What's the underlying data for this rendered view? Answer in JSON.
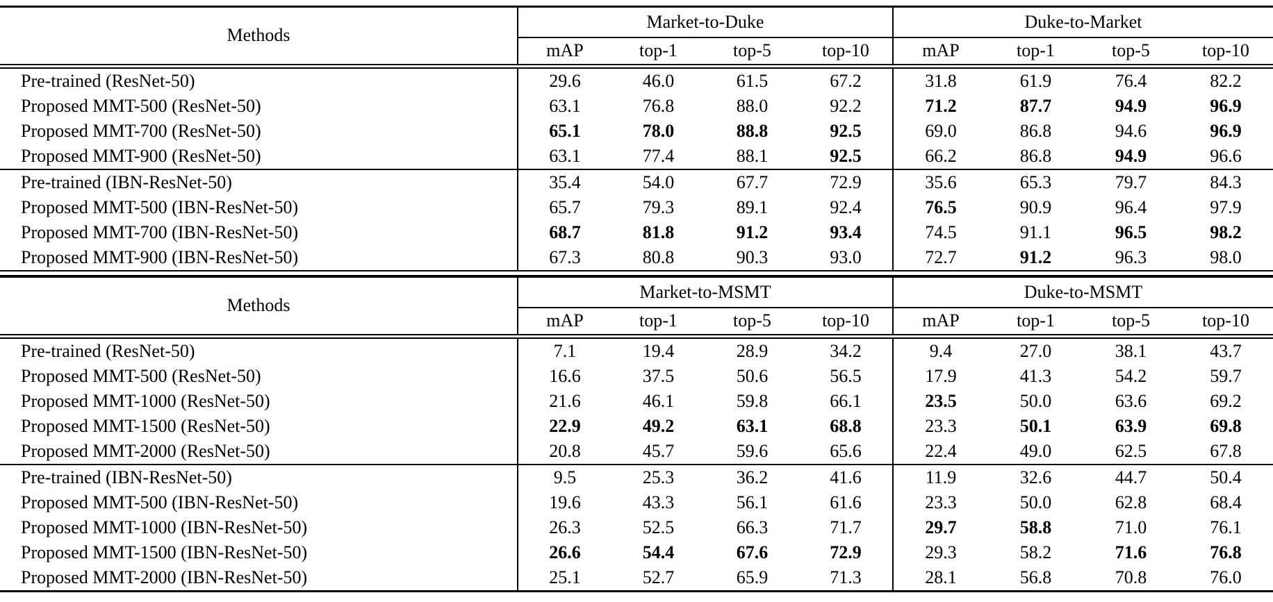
{
  "colors": {
    "background": "#ffffff",
    "text": "#000000",
    "rule": "#000000"
  },
  "tables": [
    {
      "name": "duke-market-results",
      "methods_header": "Methods",
      "groups": [
        {
          "label": "Market-to-Duke",
          "columns": [
            "mAP",
            "top-1",
            "top-5",
            "top-10"
          ]
        },
        {
          "label": "Duke-to-Market",
          "columns": [
            "mAP",
            "top-1",
            "top-5",
            "top-10"
          ]
        }
      ],
      "blocks": [
        {
          "rows": [
            {
              "method": "Pre-trained (ResNet-50)",
              "values": [
                "29.6",
                "46.0",
                "61.5",
                "67.2",
                "31.8",
                "61.9",
                "76.4",
                "82.2"
              ],
              "bold": [
                0,
                0,
                0,
                0,
                0,
                0,
                0,
                0
              ]
            },
            {
              "method": "Proposed MMT-500 (ResNet-50)",
              "values": [
                "63.1",
                "76.8",
                "88.0",
                "92.2",
                "71.2",
                "87.7",
                "94.9",
                "96.9"
              ],
              "bold": [
                0,
                0,
                0,
                0,
                1,
                1,
                1,
                1
              ]
            },
            {
              "method": "Proposed MMT-700 (ResNet-50)",
              "values": [
                "65.1",
                "78.0",
                "88.8",
                "92.5",
                "69.0",
                "86.8",
                "94.6",
                "96.9"
              ],
              "bold": [
                1,
                1,
                1,
                1,
                0,
                0,
                0,
                1
              ]
            },
            {
              "method": "Proposed MMT-900 (ResNet-50)",
              "values": [
                "63.1",
                "77.4",
                "88.1",
                "92.5",
                "66.2",
                "86.8",
                "94.9",
                "96.6"
              ],
              "bold": [
                0,
                0,
                0,
                1,
                0,
                0,
                1,
                0
              ]
            }
          ]
        },
        {
          "rows": [
            {
              "method": "Pre-trained (IBN-ResNet-50)",
              "values": [
                "35.4",
                "54.0",
                "67.7",
                "72.9",
                "35.6",
                "65.3",
                "79.7",
                "84.3"
              ],
              "bold": [
                0,
                0,
                0,
                0,
                0,
                0,
                0,
                0
              ]
            },
            {
              "method": "Proposed MMT-500 (IBN-ResNet-50)",
              "values": [
                "65.7",
                "79.3",
                "89.1",
                "92.4",
                "76.5",
                "90.9",
                "96.4",
                "97.9"
              ],
              "bold": [
                0,
                0,
                0,
                0,
                1,
                0,
                0,
                0
              ]
            },
            {
              "method": "Proposed MMT-700 (IBN-ResNet-50)",
              "values": [
                "68.7",
                "81.8",
                "91.2",
                "93.4",
                "74.5",
                "91.1",
                "96.5",
                "98.2"
              ],
              "bold": [
                1,
                1,
                1,
                1,
                0,
                0,
                1,
                1
              ]
            },
            {
              "method": "Proposed MMT-900 (IBN-ResNet-50)",
              "values": [
                "67.3",
                "80.8",
                "90.3",
                "93.0",
                "72.7",
                "91.2",
                "96.3",
                "98.0"
              ],
              "bold": [
                0,
                0,
                0,
                0,
                0,
                1,
                0,
                0
              ]
            }
          ]
        }
      ]
    },
    {
      "name": "msmt-results",
      "methods_header": "Methods",
      "groups": [
        {
          "label": "Market-to-MSMT",
          "columns": [
            "mAP",
            "top-1",
            "top-5",
            "top-10"
          ]
        },
        {
          "label": "Duke-to-MSMT",
          "columns": [
            "mAP",
            "top-1",
            "top-5",
            "top-10"
          ]
        }
      ],
      "blocks": [
        {
          "rows": [
            {
              "method": "Pre-trained (ResNet-50)",
              "values": [
                "7.1",
                "19.4",
                "28.9",
                "34.2",
                "9.4",
                "27.0",
                "38.1",
                "43.7"
              ],
              "bold": [
                0,
                0,
                0,
                0,
                0,
                0,
                0,
                0
              ]
            },
            {
              "method": "Proposed MMT-500 (ResNet-50)",
              "values": [
                "16.6",
                "37.5",
                "50.6",
                "56.5",
                "17.9",
                "41.3",
                "54.2",
                "59.7"
              ],
              "bold": [
                0,
                0,
                0,
                0,
                0,
                0,
                0,
                0
              ]
            },
            {
              "method": "Proposed MMT-1000 (ResNet-50)",
              "values": [
                "21.6",
                "46.1",
                "59.8",
                "66.1",
                "23.5",
                "50.0",
                "63.6",
                "69.2"
              ],
              "bold": [
                0,
                0,
                0,
                0,
                1,
                0,
                0,
                0
              ]
            },
            {
              "method": "Proposed MMT-1500 (ResNet-50)",
              "values": [
                "22.9",
                "49.2",
                "63.1",
                "68.8",
                "23.3",
                "50.1",
                "63.9",
                "69.8"
              ],
              "bold": [
                1,
                1,
                1,
                1,
                0,
                1,
                1,
                1
              ]
            },
            {
              "method": "Proposed MMT-2000 (ResNet-50)",
              "values": [
                "20.8",
                "45.7",
                "59.6",
                "65.6",
                "22.4",
                "49.0",
                "62.5",
                "67.8"
              ],
              "bold": [
                0,
                0,
                0,
                0,
                0,
                0,
                0,
                0
              ]
            }
          ]
        },
        {
          "rows": [
            {
              "method": "Pre-trained (IBN-ResNet-50)",
              "values": [
                "9.5",
                "25.3",
                "36.2",
                "41.6",
                "11.9",
                "32.6",
                "44.7",
                "50.4"
              ],
              "bold": [
                0,
                0,
                0,
                0,
                0,
                0,
                0,
                0
              ]
            },
            {
              "method": "Proposed MMT-500 (IBN-ResNet-50)",
              "values": [
                "19.6",
                "43.3",
                "56.1",
                "61.6",
                "23.3",
                "50.0",
                "62.8",
                "68.4"
              ],
              "bold": [
                0,
                0,
                0,
                0,
                0,
                0,
                0,
                0
              ]
            },
            {
              "method": "Proposed MMT-1000 (IBN-ResNet-50)",
              "values": [
                "26.3",
                "52.5",
                "66.3",
                "71.7",
                "29.7",
                "58.8",
                "71.0",
                "76.1"
              ],
              "bold": [
                0,
                0,
                0,
                0,
                1,
                1,
                0,
                0
              ]
            },
            {
              "method": "Proposed MMT-1500 (IBN-ResNet-50)",
              "values": [
                "26.6",
                "54.4",
                "67.6",
                "72.9",
                "29.3",
                "58.2",
                "71.6",
                "76.8"
              ],
              "bold": [
                1,
                1,
                1,
                1,
                0,
                0,
                1,
                1
              ]
            },
            {
              "method": "Proposed MMT-2000 (IBN-ResNet-50)",
              "values": [
                "25.1",
                "52.7",
                "65.9",
                "71.3",
                "28.1",
                "56.8",
                "70.8",
                "76.0"
              ],
              "bold": [
                0,
                0,
                0,
                0,
                0,
                0,
                0,
                0
              ]
            }
          ]
        }
      ]
    }
  ]
}
